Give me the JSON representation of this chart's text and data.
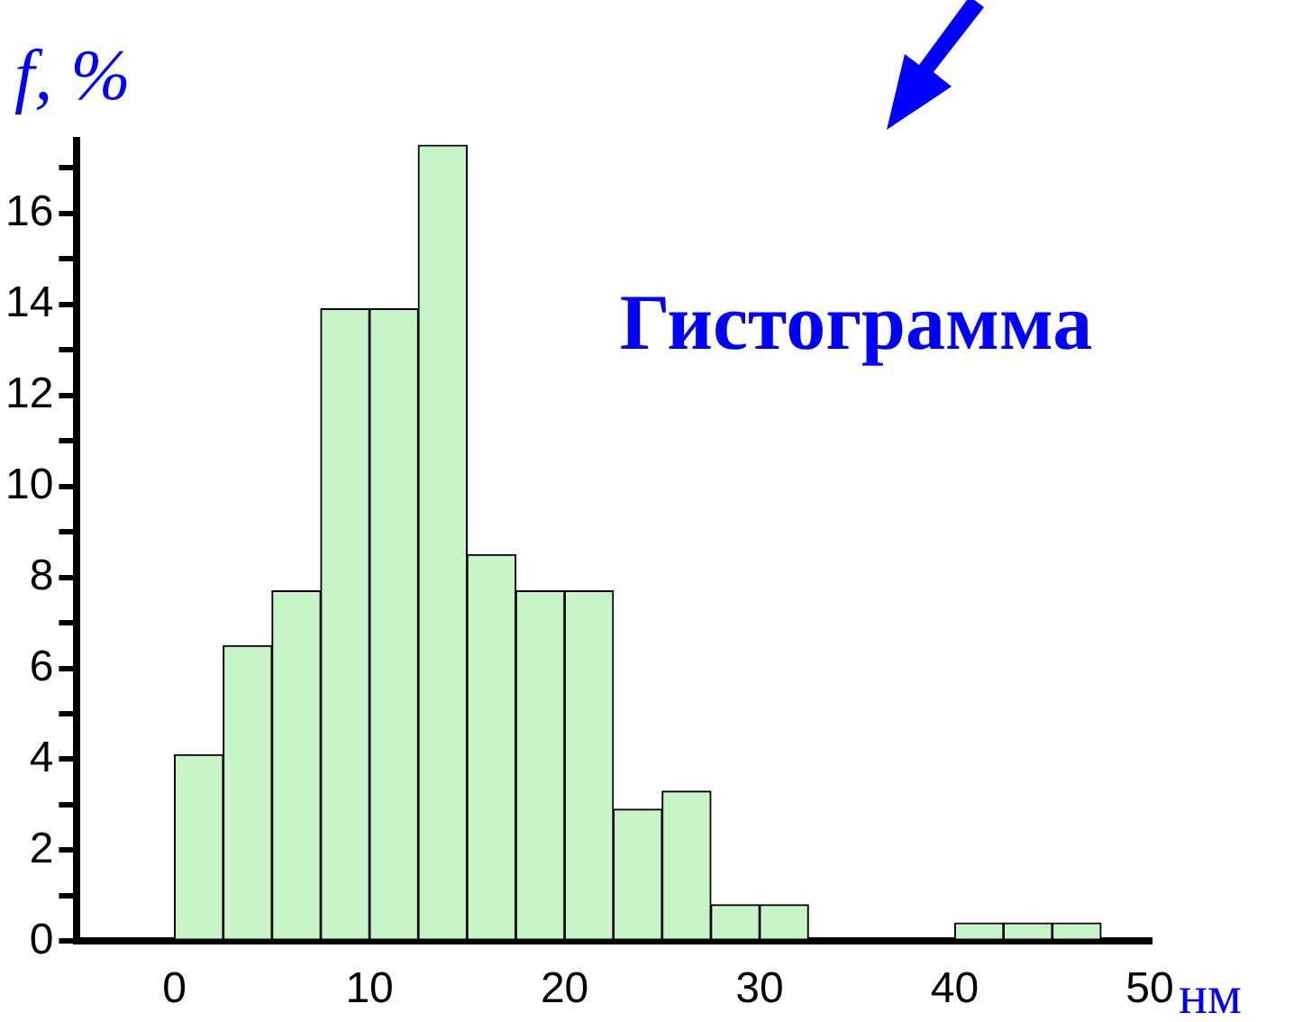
{
  "chart_data": {
    "type": "histogram",
    "ylabel": "f, %",
    "xlabel": "нм",
    "annotations": [
      "Гистограмма"
    ],
    "bins": [
      0,
      2.5,
      5,
      7.5,
      10,
      12.5,
      15,
      17.5,
      20,
      22.5,
      25,
      27.5,
      30,
      32.5,
      35,
      37.5,
      40,
      42.5,
      45,
      47.5
    ],
    "values": [
      4.1,
      6.5,
      7.7,
      13.9,
      13.9,
      17.5,
      8.5,
      7.7,
      7.7,
      2.9,
      3.3,
      0.8,
      0.8,
      0,
      0,
      0,
      0.4,
      0.4,
      0.4
    ],
    "color": "#c8f5c8",
    "xlim": [
      -5,
      50
    ],
    "xticks": [
      0,
      10,
      20,
      30,
      40,
      50
    ],
    "ylim": [
      0,
      17.6
    ],
    "yticks": [
      0,
      {
        "value": 1,
        "label": null
      },
      2,
      {
        "value": 3,
        "label": null
      },
      4,
      {
        "value": 5,
        "label": null
      },
      6,
      {
        "value": 7,
        "label": null
      },
      8,
      {
        "value": 9,
        "label": null
      },
      10,
      {
        "value": 11,
        "label": null
      },
      12,
      {
        "value": 13,
        "label": null
      },
      14,
      {
        "value": 15,
        "label": null
      },
      16,
      {
        "value": 17,
        "label": null
      }
    ]
  }
}
